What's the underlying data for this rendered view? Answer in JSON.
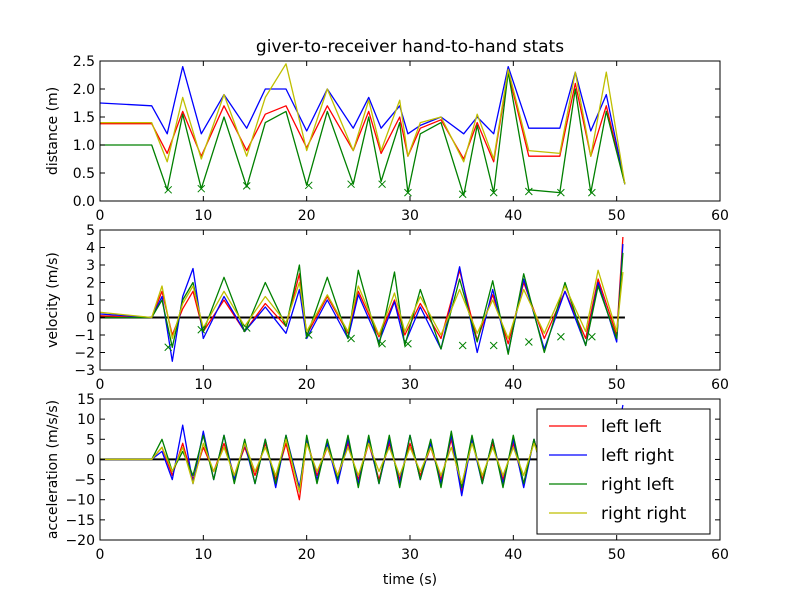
{
  "chart_data": {
    "type": "line",
    "title": "giver-to-receiver hand-to-hand stats",
    "xlabel": "time (s)",
    "xlim": [
      0,
      60
    ],
    "xticks": [
      0,
      10,
      20,
      30,
      40,
      50,
      60
    ],
    "grid": false,
    "legend": {
      "placement": "lower-right of bottom panel",
      "entries": [
        {
          "label": "left left",
          "color": "#ff0000"
        },
        {
          "label": "left right",
          "color": "#0000ff"
        },
        {
          "label": "right left",
          "color": "#008000"
        },
        {
          "label": "right right",
          "color": "#bfbf00"
        }
      ]
    },
    "panels": [
      {
        "ylabel": "distance (m)",
        "ylim": [
          0,
          2.5
        ],
        "yticks": [
          "0.0",
          "0.5",
          "1.0",
          "1.5",
          "2.0",
          "2.5"
        ],
        "x": [
          0,
          5,
          6.5,
          8,
          9.8,
          12,
          14.2,
          16,
          18,
          20,
          22,
          24.5,
          26,
          27.2,
          29,
          29.8,
          31,
          33,
          35.2,
          36.5,
          38.1,
          39.5,
          41.5,
          44.5,
          46,
          47.5,
          49,
          50.8
        ],
        "series": [
          {
            "name": "left left",
            "color": "#ff0000",
            "values": [
              1.38,
              1.38,
              0.85,
              1.6,
              0.8,
              1.7,
              0.9,
              1.55,
              1.7,
              0.95,
              1.7,
              0.9,
              1.6,
              0.85,
              1.5,
              0.8,
              1.3,
              1.45,
              0.75,
              1.4,
              0.7,
              2.3,
              0.8,
              0.8,
              2.1,
              0.8,
              1.7,
              0.3
            ]
          },
          {
            "name": "left right",
            "color": "#0000ff",
            "values": [
              1.75,
              1.7,
              1.2,
              2.4,
              1.2,
              1.9,
              1.3,
              2.0,
              2.0,
              1.25,
              2.0,
              1.3,
              1.85,
              1.3,
              1.7,
              1.2,
              1.35,
              1.5,
              1.2,
              1.5,
              1.2,
              2.4,
              1.3,
              1.3,
              2.3,
              1.25,
              1.9,
              0.3
            ]
          },
          {
            "name": "right left",
            "color": "#008000",
            "values": [
              1.0,
              1.0,
              0.2,
              1.55,
              0.22,
              1.5,
              0.25,
              1.4,
              1.6,
              0.28,
              1.6,
              0.3,
              1.5,
              0.35,
              1.4,
              0.15,
              1.2,
              1.4,
              0.1,
              1.35,
              0.15,
              2.3,
              0.2,
              0.15,
              2.0,
              0.15,
              1.6,
              0.3
            ]
          },
          {
            "name": "right right",
            "color": "#bfbf00",
            "values": [
              1.4,
              1.4,
              0.7,
              1.85,
              0.75,
              1.9,
              0.8,
              1.85,
              2.45,
              0.9,
              2.0,
              0.9,
              1.8,
              0.9,
              1.8,
              0.8,
              1.4,
              1.5,
              0.7,
              1.55,
              0.75,
              2.35,
              0.9,
              0.85,
              2.3,
              0.8,
              2.3,
              0.3
            ]
          }
        ],
        "markers": {
          "symbol": "x",
          "color": "#008000",
          "x": [
            6.6,
            9.8,
            14.2,
            20.2,
            24.3,
            27.3,
            29.8,
            35.1,
            38.1,
            41.5,
            44.6,
            47.6
          ],
          "y": [
            0.2,
            0.22,
            0.27,
            0.28,
            0.3,
            0.3,
            0.15,
            0.12,
            0.15,
            0.17,
            0.15,
            0.15
          ]
        }
      },
      {
        "ylabel": "velocity (m/s)",
        "ylim": [
          -3,
          5
        ],
        "yticks": [
          "−3",
          "−2",
          "−1",
          "0",
          "1",
          "2",
          "3",
          "4",
          "5"
        ],
        "zero_line": true,
        "x": [
          0,
          5,
          6,
          7,
          8,
          9,
          10,
          12,
          14,
          16,
          18,
          19.3,
          20,
          22,
          24,
          25,
          27,
          28.5,
          29.5,
          31,
          33,
          34.8,
          36.5,
          38,
          39.5,
          41,
          43,
          45,
          47,
          48.2,
          50,
          50.6
        ],
        "series": [
          {
            "name": "left left",
            "color": "#ff0000",
            "values": [
              0.1,
              0,
              1.5,
              -1.0,
              0.5,
              1.5,
              -0.8,
              1.0,
              -0.8,
              0.8,
              -0.5,
              2.5,
              -1.0,
              1.2,
              -0.9,
              1.5,
              -1.1,
              1.0,
              -1.0,
              0.8,
              -1.2,
              2.7,
              -1.3,
              1.3,
              -1.5,
              2.0,
              -1.2,
              1.5,
              -1.2,
              2.2,
              -1.0,
              4.6
            ]
          },
          {
            "name": "left right",
            "color": "#0000ff",
            "values": [
              0.2,
              0,
              1.2,
              -2.5,
              1.2,
              2.8,
              -1.2,
              1.2,
              -0.8,
              0.6,
              -0.9,
              1.6,
              -1.2,
              1.0,
              -1.2,
              1.3,
              -1.4,
              0.9,
              -1.5,
              0.6,
              -1.8,
              2.9,
              -2.0,
              1.6,
              -2.0,
              2.2,
              -1.8,
              1.5,
              -1.6,
              2.0,
              -1.4,
              4.2
            ]
          },
          {
            "name": "right left",
            "color": "#008000",
            "values": [
              0,
              0,
              1.0,
              -1.7,
              1.0,
              2.0,
              -0.8,
              2.3,
              -0.8,
              2.0,
              -0.5,
              3.0,
              -1.1,
              2.3,
              -1.2,
              2.7,
              -1.6,
              2.6,
              -1.6,
              1.6,
              -1.8,
              2.2,
              -1.4,
              2.1,
              -2.1,
              2.5,
              -2.0,
              2.0,
              -1.6,
              1.8,
              -1.2,
              3.7
            ]
          },
          {
            "name": "right right",
            "color": "#bfbf00",
            "values": [
              0.3,
              0,
              1.8,
              -1.2,
              0.8,
              1.8,
              -0.6,
              1.5,
              -0.5,
              1.2,
              -0.3,
              2.0,
              -0.8,
              1.3,
              -0.8,
              1.8,
              -1.0,
              1.4,
              -0.8,
              1.2,
              -1.0,
              1.6,
              -0.9,
              1.0,
              -1.2,
              1.6,
              -0.9,
              1.8,
              -0.8,
              2.7,
              -0.8,
              2.6
            ]
          }
        ],
        "markers": {
          "symbol": "x",
          "color": "#008000",
          "x": [
            6.6,
            9.8,
            14.2,
            20.2,
            24.3,
            27.3,
            29.8,
            35.1,
            38.1,
            41.5,
            44.6,
            47.6
          ],
          "y": [
            -1.7,
            -0.7,
            -0.6,
            -1.0,
            -1.2,
            -1.5,
            -1.5,
            -1.6,
            -1.6,
            -1.4,
            -1.1,
            -1.1
          ]
        }
      },
      {
        "ylabel": "acceleration (m/s/s)",
        "ylim": [
          -20,
          15
        ],
        "yticks": [
          "−20",
          "−15",
          "−10",
          "−5",
          "0",
          "5",
          "10",
          "15"
        ],
        "zero_line": true,
        "x": [
          0,
          5,
          6,
          7,
          8,
          9,
          10,
          11,
          12,
          13,
          14,
          15,
          16,
          17,
          18,
          19.3,
          20,
          21,
          22,
          23,
          24,
          25,
          26,
          27,
          28,
          29,
          30,
          31,
          32,
          33,
          34,
          35,
          36,
          37,
          38,
          39,
          40,
          41,
          42,
          43,
          44,
          45,
          46,
          47,
          48,
          49,
          50,
          50.6
        ],
        "series": [
          {
            "name": "left left",
            "color": "#ff0000",
            "values": [
              0,
              0,
              3,
              -4,
              4,
              -5,
              3,
              -3,
              4,
              -4,
              3,
              -4,
              4,
              -5,
              4,
              -10,
              5,
              -4,
              3,
              -4,
              4,
              -5,
              4,
              -5,
              4,
              -5,
              4,
              -4,
              3,
              -5,
              5,
              -8,
              5,
              -5,
              4,
              -5,
              4,
              -6,
              5,
              -4,
              4,
              -5,
              4,
              -4,
              3,
              -4,
              5,
              12
            ]
          },
          {
            "name": "left right",
            "color": "#0000ff",
            "values": [
              0,
              0,
              2,
              -5,
              8.5,
              -6,
              7,
              -5,
              6,
              -5,
              4,
              -6,
              5,
              -7,
              6,
              -7,
              5,
              -5,
              4,
              -6,
              5,
              -6,
              5,
              -6,
              5,
              -6,
              6,
              -5,
              4,
              -6,
              6,
              -9,
              5,
              -6,
              5,
              -6,
              5,
              -7,
              5,
              -5,
              4,
              -5,
              4,
              -5,
              4,
              -5,
              5,
              13.5
            ]
          },
          {
            "name": "right left",
            "color": "#008000",
            "values": [
              0,
              0,
              5,
              -3,
              2,
              -4,
              6,
              -5,
              6,
              -6,
              5,
              -6,
              5,
              -6,
              6,
              -8,
              6,
              -6,
              5,
              -5,
              6,
              -7,
              6,
              -6,
              6,
              -7,
              6,
              -5,
              5,
              -7,
              7,
              -7,
              6,
              -6,
              5,
              -7,
              6,
              -6,
              5,
              -6,
              5,
              -6,
              5,
              -6,
              5,
              -5,
              4,
              12
            ]
          },
          {
            "name": "right right",
            "color": "#bfbf00",
            "values": [
              0,
              0,
              3,
              -3,
              3,
              -6,
              4,
              -3,
              3,
              -4,
              4,
              -3,
              3,
              -4,
              5,
              -8,
              4,
              -3,
              3,
              -4,
              3,
              -4,
              4,
              -3,
              3,
              -4,
              3,
              -3,
              3,
              -4,
              3,
              -6,
              4,
              -4,
              3,
              -4,
              3,
              -4,
              4,
              -3,
              3,
              -4,
              3,
              -3,
              3,
              -4,
              4,
              5
            ]
          }
        ]
      }
    ]
  }
}
